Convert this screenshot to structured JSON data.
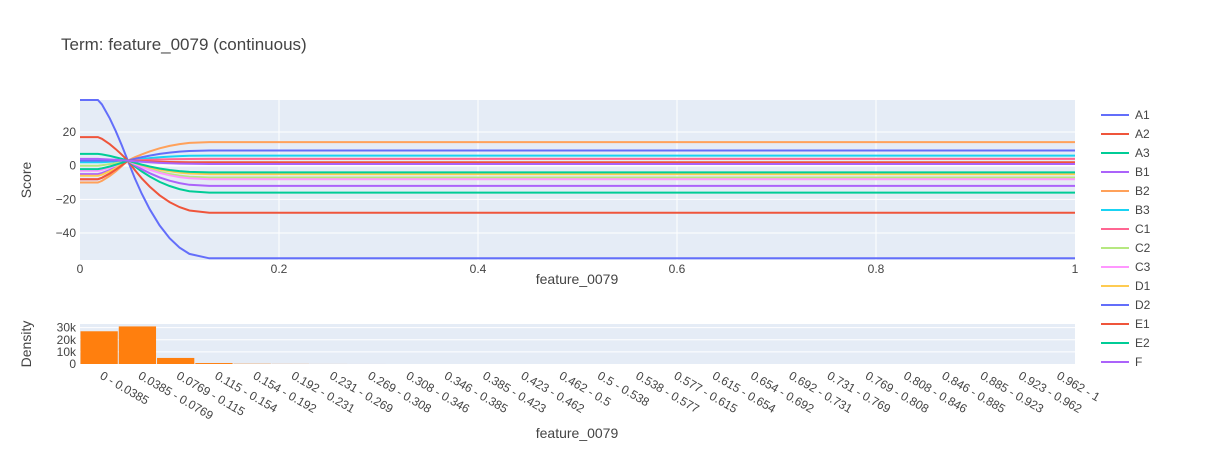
{
  "chart_data": [
    {
      "type": "line",
      "title": "Term: feature_0079 (continuous)",
      "xlabel": "feature_0079",
      "ylabel": "Score",
      "xlim": [
        0,
        1
      ],
      "ylim": [
        -56,
        39
      ],
      "xticks": [
        0,
        0.2,
        0.4,
        0.6,
        0.8,
        1
      ],
      "xtick_labels": [
        "0",
        "0.2",
        "0.4",
        "0.6",
        "0.8",
        "1"
      ],
      "yticks": [
        20,
        0,
        -20,
        -40
      ],
      "ytick_labels": [
        "20",
        "0",
        "−20",
        "−40"
      ],
      "grid": true,
      "legend_position": "right",
      "series": [
        {
          "name": "A1",
          "color": "#636efa",
          "start": 39,
          "end": -55
        },
        {
          "name": "A2",
          "color": "#ef553b",
          "start": 17,
          "end": -28
        },
        {
          "name": "A3",
          "color": "#00cc96",
          "start": 7,
          "end": -16
        },
        {
          "name": "B1",
          "color": "#ab63fa",
          "start": -5,
          "end": -12
        },
        {
          "name": "B2",
          "color": "#ffa15a",
          "start": -10,
          "end": 14
        },
        {
          "name": "B3",
          "color": "#19d3f3",
          "start": 2,
          "end": 6
        },
        {
          "name": "C1",
          "color": "#ff6692",
          "start": -8,
          "end": 4
        },
        {
          "name": "C2",
          "color": "#b6e880",
          "start": 0,
          "end": -7
        },
        {
          "name": "C3",
          "color": "#ff97ff",
          "start": -3,
          "end": -8
        },
        {
          "name": "D1",
          "color": "#fecb52",
          "start": -6,
          "end": -5
        },
        {
          "name": "D2",
          "color": "#636efa",
          "start": 3,
          "end": 9
        },
        {
          "name": "E1",
          "color": "#ef553b",
          "start": -8,
          "end": 2
        },
        {
          "name": "E2",
          "color": "#00cc96",
          "start": -2,
          "end": -4
        },
        {
          "name": "F",
          "color": "#ab63fa",
          "start": 4,
          "end": 1
        }
      ]
    },
    {
      "type": "bar",
      "xlabel": "feature_0079",
      "ylabel": "Density",
      "ylim": [
        0,
        33000
      ],
      "yticks": [
        0,
        10000,
        20000,
        30000
      ],
      "ytick_labels": [
        "0",
        "10k",
        "20k",
        "30k"
      ],
      "color": "#ff7f0e",
      "categories": [
        "0 - 0.0385",
        "0.0385 - 0.0769",
        "0.0769 - 0.115",
        "0.115 - 0.154",
        "0.154 - 0.192",
        "0.192 - 0.231",
        "0.231 - 0.269",
        "0.269 - 0.308",
        "0.308 - 0.346",
        "0.346 - 0.385",
        "0.385 - 0.423",
        "0.423 - 0.462",
        "0.462 - 0.5",
        "0.5 - 0.538",
        "0.538 - 0.577",
        "0.577 - 0.615",
        "0.615 - 0.654",
        "0.654 - 0.692",
        "0.692 - 0.731",
        "0.731 - 0.769",
        "0.769 - 0.808",
        "0.808 - 0.846",
        "0.846 - 0.885",
        "0.885 - 0.923",
        "0.923 - 0.962",
        "0.962 - 1"
      ],
      "values": [
        27000,
        31000,
        5000,
        800,
        200,
        80,
        30,
        10,
        0,
        0,
        0,
        0,
        0,
        0,
        0,
        0,
        0,
        0,
        0,
        0,
        0,
        0,
        0,
        0,
        0,
        0
      ]
    }
  ]
}
